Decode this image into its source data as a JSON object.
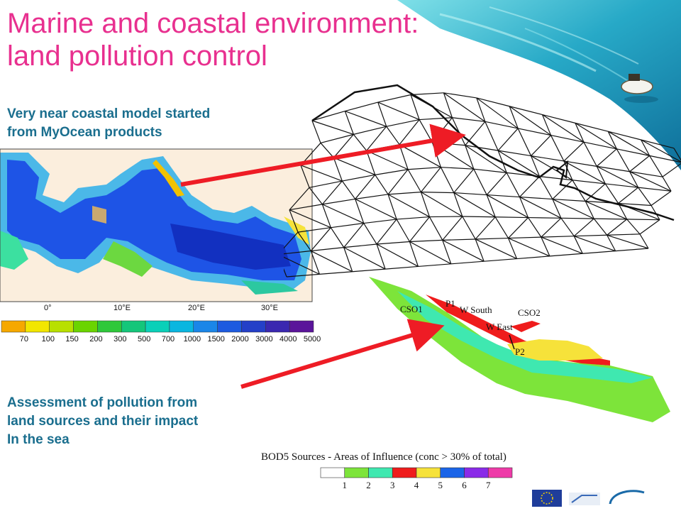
{
  "slide": {
    "title_line1": "Marine and coastal environment:",
    "title_line2": "land pollution control",
    "intro_line1": "Very near coastal model started",
    "intro_line2": "from  MyOcean products",
    "assess_line1": "Assessment of pollution from",
    "assess_line2": "land sources and their impact",
    "assess_line3": "In the sea"
  },
  "med_map": {
    "lon_ticks": [
      "0°",
      "10°E",
      "20°E",
      "30°E"
    ],
    "colorbar_ticks": [
      "70",
      "100",
      "150",
      "200",
      "300",
      "500",
      "700",
      "1000",
      "1500",
      "2000",
      "3000",
      "4000",
      "5000"
    ],
    "colorbar_colors": [
      "#f6a800",
      "#f2e600",
      "#b8e000",
      "#6ad400",
      "#2ec83a",
      "#14c67a",
      "#0ad0b8",
      "#0ab6e0",
      "#1a86e8",
      "#1c5ae0",
      "#2440c8",
      "#3a28b0",
      "#5a149a"
    ]
  },
  "influence_map": {
    "labels": {
      "cso1": "CSO1",
      "p1": "P1",
      "w_south": "W South",
      "cso2": "CSO2",
      "w_east": "W East",
      "p2": "P2"
    },
    "legend_title": "BOD5 Sources - Areas of Influence (conc > 30% of total)",
    "legend_numbers": [
      "1",
      "2",
      "3",
      "4",
      "5",
      "6",
      "7"
    ],
    "legend_colors": [
      "#ffffff",
      "#7de43a",
      "#3fe8b0",
      "#ef1c1c",
      "#f6e23a",
      "#1a64e8",
      "#8a2ae8",
      "#ee3aa8"
    ]
  },
  "colors": {
    "title": "#e8308f",
    "body_text": "#1a6e8e",
    "arrow": "#ee1c25"
  }
}
